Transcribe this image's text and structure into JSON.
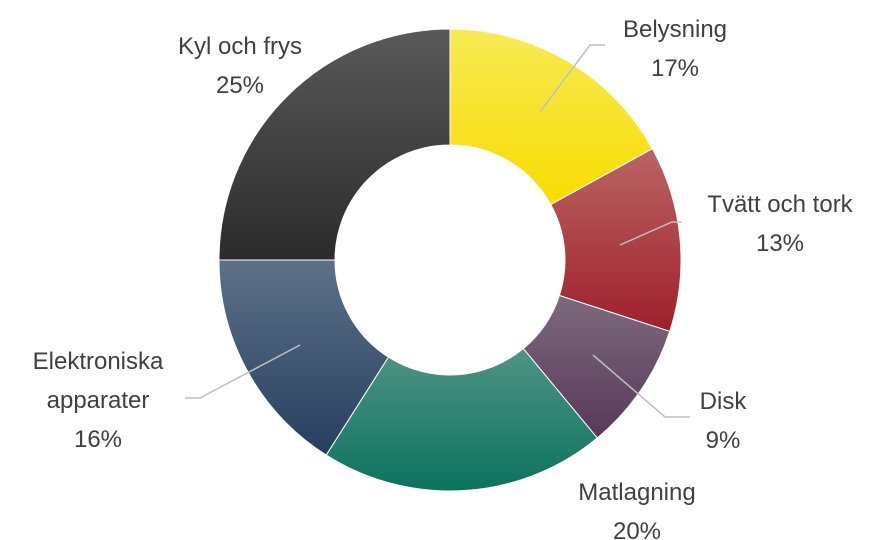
{
  "chart_data": {
    "type": "donut",
    "categories": [
      "Belysning",
      "Tvätt och tork",
      "Disk",
      "Matlagning",
      "Elektroniska apparater",
      "Kyl och frys"
    ],
    "values": [
      17,
      13,
      9,
      20,
      16,
      25
    ],
    "value_labels": [
      "17%",
      "13%",
      "9%",
      "20%",
      "16%",
      "25%"
    ],
    "colors": [
      [
        "#f7ea55",
        "#f8dc00"
      ],
      [
        "#bb6464",
        "#9e1f2b"
      ],
      [
        "#7d6a7e",
        "#573859"
      ],
      [
        "#4f9484",
        "#0b725e"
      ],
      [
        "#5d7188",
        "#263f5f"
      ],
      [
        "#595959",
        "#2b2b2b"
      ]
    ]
  }
}
